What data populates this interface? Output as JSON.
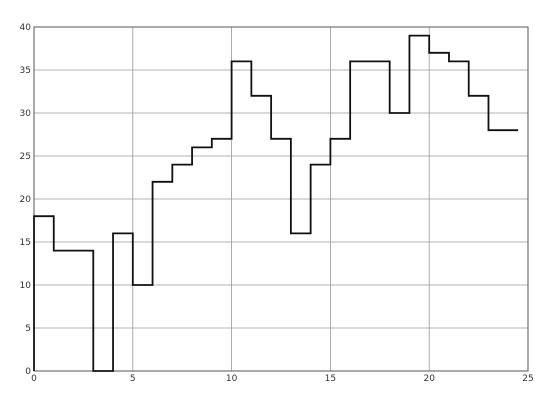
{
  "chart_data": {
    "type": "line",
    "step": "post",
    "title": "",
    "xlabel": "",
    "ylabel": "",
    "xlim": [
      0,
      25
    ],
    "ylim": [
      0,
      40
    ],
    "grid": true,
    "x_ticks": [
      0,
      5,
      10,
      15,
      20,
      25
    ],
    "y_ticks": [
      0,
      5,
      10,
      15,
      20,
      25,
      30,
      35,
      40
    ],
    "x_tick_labels": [
      "0",
      "5",
      "10",
      "15",
      "20",
      "25"
    ],
    "y_tick_labels": [
      "0",
      "5",
      "10",
      "15",
      "20",
      "25",
      "30",
      "35",
      "40"
    ],
    "series": [
      {
        "x": [
          0,
          1,
          2,
          3,
          4,
          5,
          6,
          7,
          8,
          9,
          10,
          11,
          12,
          13,
          14,
          15,
          16,
          17,
          18,
          19,
          20,
          21,
          22,
          23,
          24
        ],
        "values": [
          18,
          14,
          14,
          0,
          16,
          10,
          22,
          24,
          26,
          27,
          36,
          32,
          27,
          16,
          24,
          27,
          36,
          36,
          30,
          39,
          37,
          36,
          32,
          28,
          28
        ],
        "color": "#111111"
      }
    ],
    "colors": {
      "line": "#111111",
      "grid": "#9a9a9a",
      "axis": "#555555",
      "background": "#ffffff"
    }
  }
}
